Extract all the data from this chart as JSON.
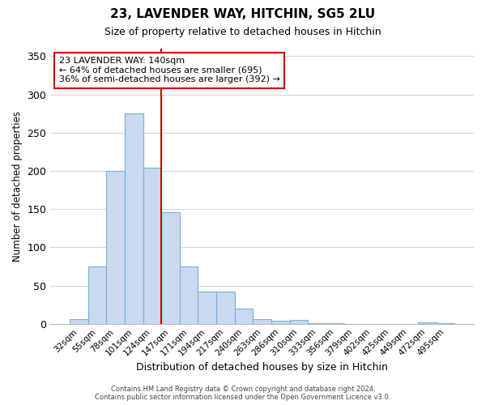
{
  "title": "23, LAVENDER WAY, HITCHIN, SG5 2LU",
  "subtitle": "Size of property relative to detached houses in Hitchin",
  "xlabel": "Distribution of detached houses by size in Hitchin",
  "ylabel": "Number of detached properties",
  "bin_labels": [
    "32sqm",
    "55sqm",
    "78sqm",
    "101sqm",
    "124sqm",
    "147sqm",
    "171sqm",
    "194sqm",
    "217sqm",
    "240sqm",
    "263sqm",
    "286sqm",
    "310sqm",
    "333sqm",
    "356sqm",
    "379sqm",
    "402sqm",
    "425sqm",
    "449sqm",
    "472sqm",
    "495sqm"
  ],
  "bin_values": [
    6,
    75,
    200,
    275,
    204,
    146,
    75,
    42,
    42,
    20,
    6,
    4,
    5,
    1,
    1,
    0,
    0,
    0,
    0,
    2,
    1
  ],
  "bar_color": "#c9d9f0",
  "bar_edge_color": "#7bafd4",
  "vline_x_index": 4.5,
  "vline_color": "#cc0000",
  "annotation_text": "23 LAVENDER WAY: 140sqm\n← 64% of detached houses are smaller (695)\n36% of semi-detached houses are larger (392) →",
  "annotation_box_color": "#ffffff",
  "annotation_box_edge_color": "#cc0000",
  "ylim": [
    0,
    360
  ],
  "yticks": [
    0,
    50,
    100,
    150,
    200,
    250,
    300,
    350
  ],
  "footer_line1": "Contains HM Land Registry data © Crown copyright and database right 2024.",
  "footer_line2": "Contains public sector information licensed under the Open Government Licence v3.0.",
  "background_color": "#ffffff",
  "grid_color": "#d0d8e8"
}
